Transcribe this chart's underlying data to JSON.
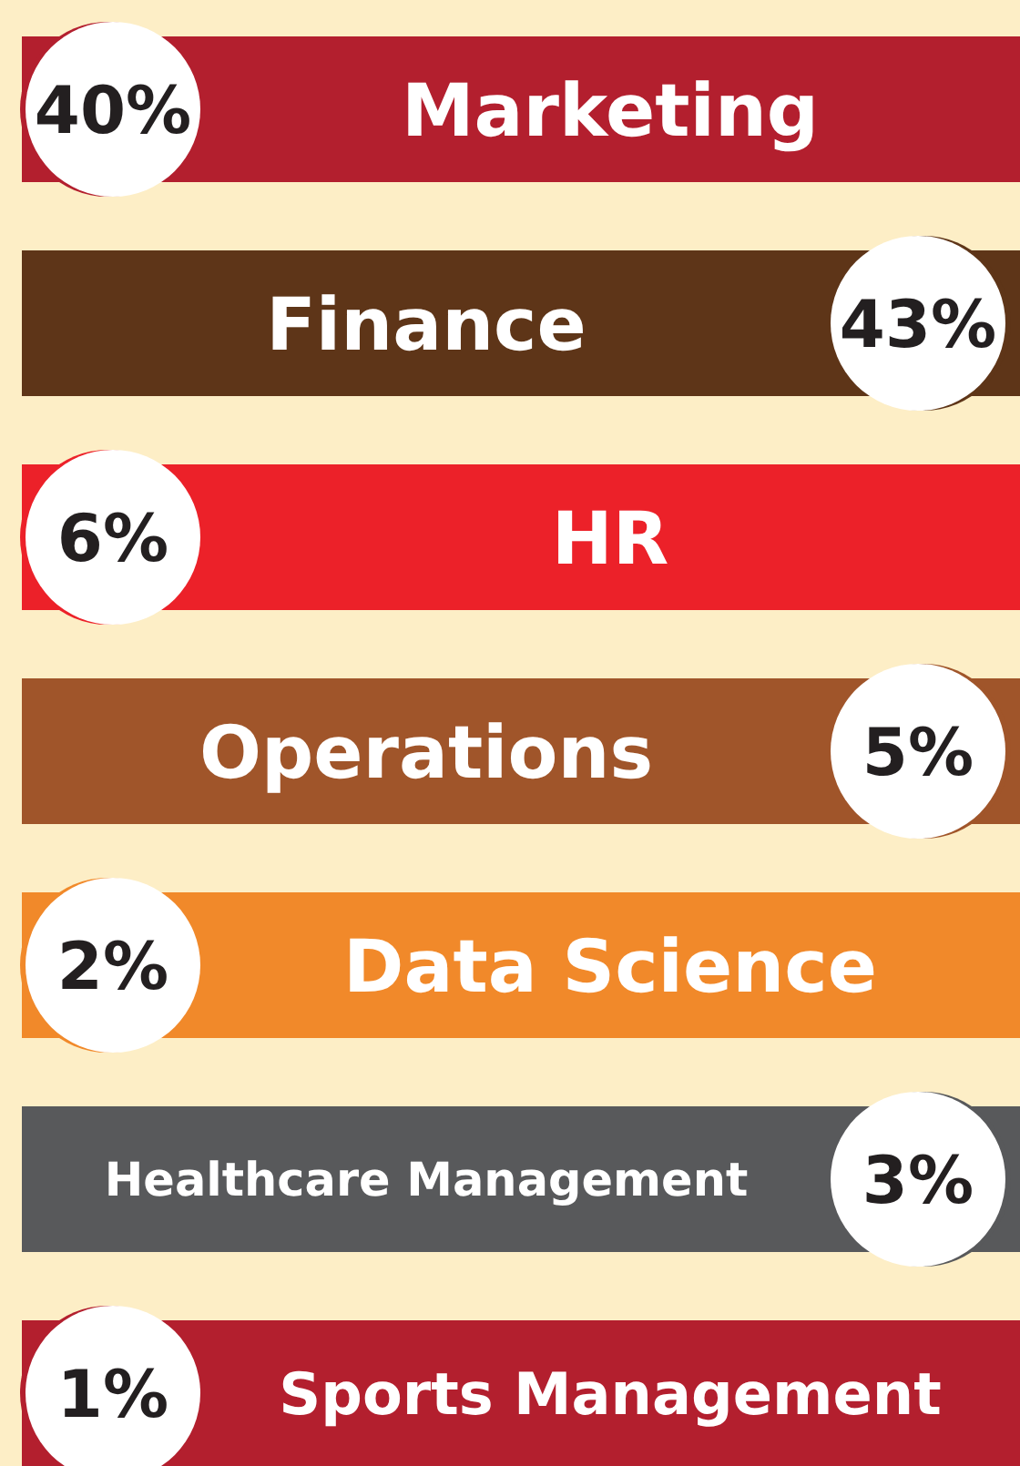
{
  "chart_data": {
    "type": "other",
    "categories": [
      "Marketing",
      "Finance",
      "HR",
      "Operations",
      "Data Science",
      "Healthcare Management",
      "Sports Management"
    ],
    "values": [
      40,
      43,
      6,
      5,
      2,
      3,
      1
    ],
    "value_labels": [
      "40%",
      "43%",
      "6%",
      "5%",
      "2%",
      "3%",
      "1%"
    ],
    "colors": [
      "#b31f2e",
      "#5e3518",
      "#ec2129",
      "#a0552a",
      "#f1892a",
      "#58595b",
      "#b31f2e"
    ]
  }
}
